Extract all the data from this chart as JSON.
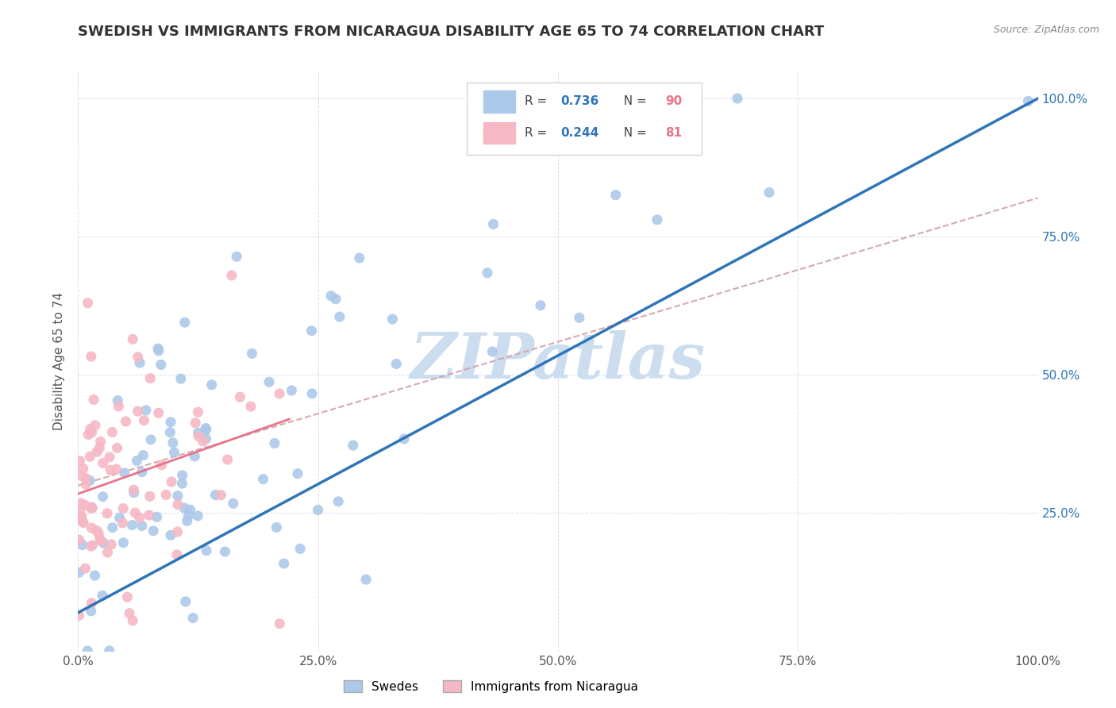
{
  "title": "SWEDISH VS IMMIGRANTS FROM NICARAGUA DISABILITY AGE 65 TO 74 CORRELATION CHART",
  "source": "Source: ZipAtlas.com",
  "ylabel": "Disability Age 65 to 74",
  "legend_r1": "0.736",
  "legend_n1": "90",
  "legend_r2": "0.244",
  "legend_n2": "81",
  "swedes_color": "#adc9ea",
  "nicaragua_color": "#f5b8c4",
  "line_swedes_color": "#2f75b8",
  "line_nicaragua_color": "#e8748a",
  "dashed_color": "#d0a0a8",
  "watermark_color": "#ccddf0",
  "title_fontsize": 13,
  "label_fontsize": 11,
  "tick_fontsize": 11,
  "background_color": "#ffffff",
  "right_tick_color": "#2f75b8",
  "r_value_color": "#2f75b8",
  "n_value_color": "#e8748a"
}
